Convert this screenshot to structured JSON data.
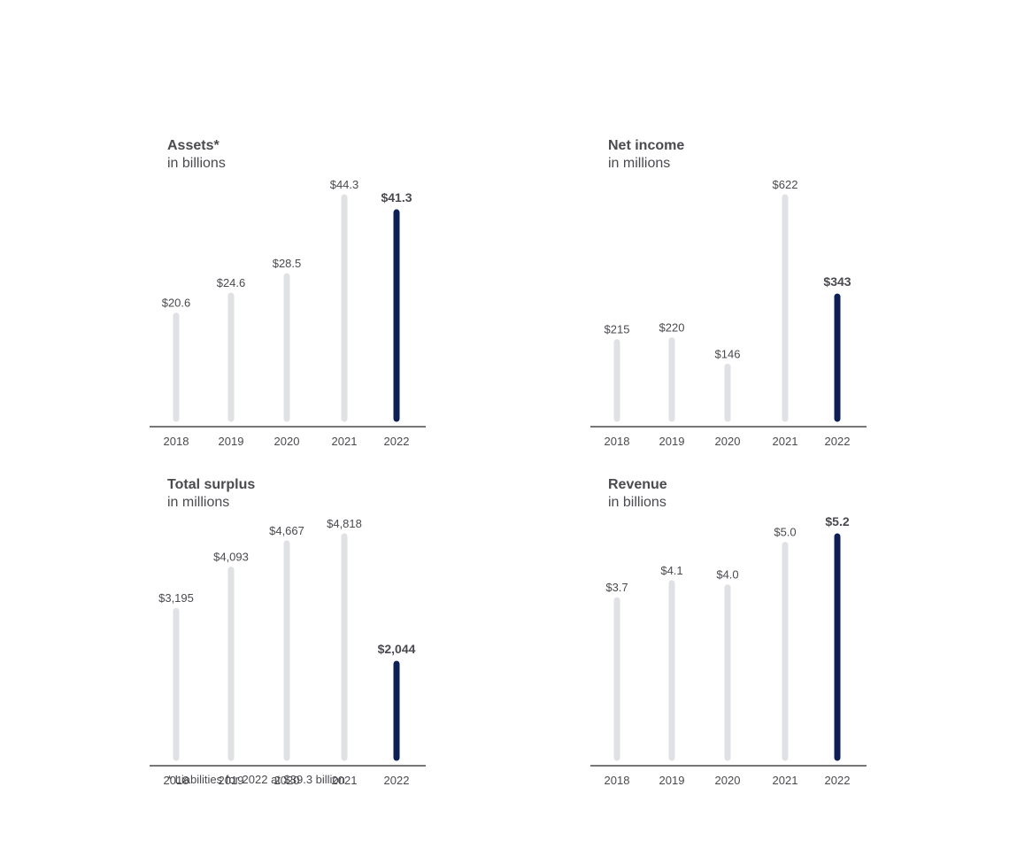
{
  "colors": {
    "bar_default": "#e0e1e5",
    "bar_highlight": "#0d1f54",
    "axis": "#4a4a4f",
    "text": "#4a4a4f"
  },
  "chart_data": [
    {
      "type": "bar",
      "title": "Assets*",
      "subtitle": "in billions",
      "categories": [
        "2018",
        "2019",
        "2020",
        "2021",
        "2022"
      ],
      "values": [
        20.6,
        24.6,
        28.5,
        44.3,
        41.3
      ],
      "value_labels": [
        "$20.6",
        "$24.6",
        "$28.5",
        "$44.3",
        "$41.3"
      ],
      "highlight_index": 4,
      "ylim": [
        0,
        44.3
      ],
      "grid": false
    },
    {
      "type": "bar",
      "title": "Net income",
      "subtitle": "in millions",
      "categories": [
        "2018",
        "2019",
        "2020",
        "2021",
        "2022"
      ],
      "values": [
        215,
        220,
        146,
        622,
        343
      ],
      "value_labels": [
        "$215",
        "$220",
        "$146",
        "$622",
        "$343"
      ],
      "highlight_index": 4,
      "ylim": [
        0,
        622
      ],
      "grid": false
    },
    {
      "type": "bar",
      "title": "Total surplus",
      "subtitle": "in millions",
      "categories": [
        "2018",
        "2019",
        "2020",
        "2021",
        "2022"
      ],
      "values": [
        3195,
        4093,
        4667,
        4818,
        2044
      ],
      "value_labels": [
        "$3,195",
        "$4,093",
        "$4,667",
        "$4,818",
        "$2,044"
      ],
      "highlight_index": 4,
      "ylim": [
        0,
        4818
      ],
      "grid": false
    },
    {
      "type": "bar",
      "title": "Revenue",
      "subtitle": "in billions",
      "categories": [
        "2018",
        "2019",
        "2020",
        "2021",
        "2022"
      ],
      "values": [
        3.7,
        4.1,
        4.0,
        5.0,
        5.2
      ],
      "value_labels": [
        "$3.7",
        "$4.1",
        "$4.0",
        "$5.0",
        "$5.2"
      ],
      "highlight_index": 4,
      "ylim": [
        0,
        5.2
      ],
      "grid": false
    }
  ],
  "footnote": "* Liabilities for 2022 at $39.3 billion"
}
